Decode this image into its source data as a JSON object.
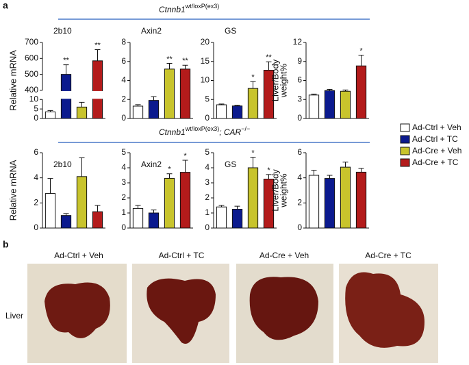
{
  "panel_a_label": "a",
  "panel_b_label": "b",
  "genotypes": [
    {
      "gene": "Ctnnb1",
      "allele": "wt/loxP(ex3)"
    },
    {
      "gene": "Ctnnb1",
      "allele": "wt/loxP(ex3)",
      "extra": "; CAR",
      "extra_sup": "−/−"
    }
  ],
  "legend": [
    {
      "name": "Ad-Ctrl + Veh",
      "color": "#ffffff"
    },
    {
      "name": "Ad-Ctrl + TC",
      "color": "#0b1a8e"
    },
    {
      "name": "Ad-Cre + Veh",
      "color": "#c8c42c"
    },
    {
      "name": "Ad-Cre + TC",
      "color": "#b31b1b"
    }
  ],
  "chart_data": [
    {
      "type": "bar",
      "title": "2b10",
      "ylabel": [
        "Relative mRNA"
      ],
      "values": [
        3.5,
        500,
        6,
        585
      ],
      "errors": [
        0.7,
        60,
        2.5,
        70
      ],
      "annotations": [
        null,
        "**",
        null,
        "**"
      ],
      "ylim": [
        0,
        700
      ],
      "axis_break": [
        10,
        400
      ],
      "yticks": [
        0,
        5,
        10,
        400,
        500,
        600,
        700
      ]
    },
    {
      "type": "bar",
      "title": "Axin2",
      "values": [
        1.3,
        1.9,
        5.2,
        5.2
      ],
      "errors": [
        0.15,
        0.4,
        0.6,
        0.4
      ],
      "annotations": [
        null,
        null,
        "**",
        "**"
      ],
      "ylim": [
        0,
        8
      ],
      "yticks": [
        0,
        2,
        4,
        6,
        8
      ]
    },
    {
      "type": "bar",
      "title": "GS",
      "values": [
        3.6,
        3.3,
        7.9,
        12.7
      ],
      "errors": [
        0.2,
        0.2,
        1.8,
        2.2
      ],
      "annotations": [
        null,
        null,
        "*",
        "**"
      ],
      "ylim": [
        0,
        20
      ],
      "yticks": [
        0,
        5,
        10,
        15,
        20
      ]
    },
    {
      "type": "bar",
      "ylabel": [
        "Liver/Body",
        "weight%"
      ],
      "values": [
        3.7,
        4.4,
        4.3,
        8.3
      ],
      "errors": [
        0.15,
        0.2,
        0.2,
        1.7
      ],
      "annotations": [
        null,
        null,
        null,
        "*"
      ],
      "ylim": [
        0,
        12
      ],
      "yticks": [
        0,
        3,
        6,
        9,
        12
      ]
    },
    {
      "type": "bar",
      "title": "2b10",
      "ylabel": [
        "Relative mRNA"
      ],
      "values": [
        2.75,
        1.0,
        4.1,
        1.3
      ],
      "errors": [
        1.2,
        0.15,
        1.5,
        0.5
      ],
      "ylim": [
        0,
        6
      ],
      "yticks": [
        0,
        2,
        4,
        6
      ]
    },
    {
      "type": "bar",
      "title": "Axin2",
      "values": [
        1.3,
        1.0,
        3.3,
        3.7
      ],
      "errors": [
        0.2,
        0.2,
        0.3,
        0.8
      ],
      "annotations": [
        null,
        null,
        "*",
        "*"
      ],
      "ylim": [
        0,
        5
      ],
      "yticks": [
        0,
        1,
        2,
        3,
        4,
        5
      ]
    },
    {
      "type": "bar",
      "title": "GS",
      "values": [
        1.4,
        1.25,
        4.0,
        3.25
      ],
      "errors": [
        0.1,
        0.2,
        0.7,
        0.3
      ],
      "annotations": [
        null,
        null,
        "*",
        "*"
      ],
      "ylim": [
        0,
        5
      ],
      "yticks": [
        0,
        1,
        2,
        3,
        4,
        5
      ]
    },
    {
      "type": "bar",
      "ylabel": [
        "Liver/Body",
        "weight%"
      ],
      "values": [
        4.2,
        3.95,
        4.85,
        4.45
      ],
      "errors": [
        0.4,
        0.25,
        0.4,
        0.3
      ],
      "ylim": [
        0,
        6
      ],
      "yticks": [
        0,
        2,
        4,
        6
      ]
    }
  ],
  "photo_row_label": "Liver"
}
